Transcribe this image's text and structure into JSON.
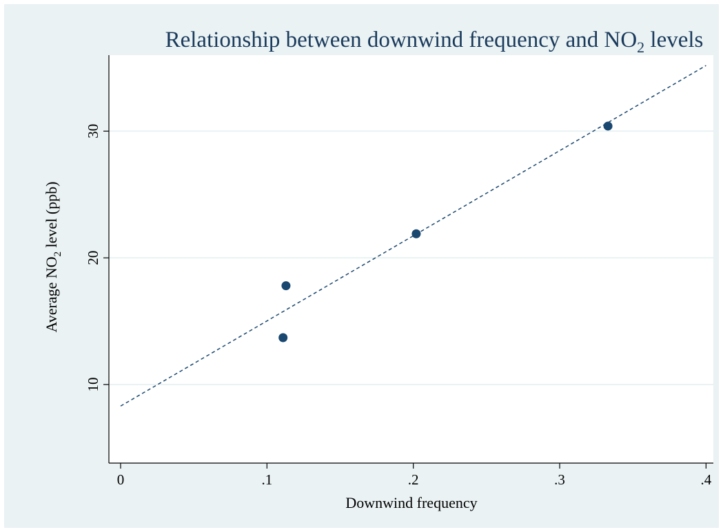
{
  "chart_data": {
    "type": "scatter",
    "title": {
      "prefix": "Relationship between downwind frequency and NO",
      "subscript": "2",
      "suffix": " levels"
    },
    "xlabel": "Downwind frequency",
    "ylabel": {
      "prefix": "Average NO",
      "subscript": "2",
      "suffix": " level (ppb)"
    },
    "xlim": [
      -0.008,
      0.405
    ],
    "ylim": [
      3.8,
      36
    ],
    "x_ticks": [
      {
        "value": 0,
        "label": "0"
      },
      {
        "value": 0.1,
        "label": ".1"
      },
      {
        "value": 0.2,
        "label": ".2"
      },
      {
        "value": 0.3,
        "label": ".3"
      },
      {
        "value": 0.4,
        "label": ".4"
      }
    ],
    "y_ticks": [
      {
        "value": 10,
        "label": "10"
      },
      {
        "value": 20,
        "label": "20"
      },
      {
        "value": 30,
        "label": "30"
      }
    ],
    "grid": "horizontal",
    "series": [
      {
        "points": [
          {
            "x": 0.111,
            "y": 13.7
          },
          {
            "x": 0.113,
            "y": 17.8
          },
          {
            "x": 0.202,
            "y": 21.9
          },
          {
            "x": 0.333,
            "y": 30.4
          }
        ]
      }
    ],
    "fit_line": {
      "style": "dashed",
      "intercept": 8.3,
      "slope": 67.2,
      "x_range": [
        0,
        0.4
      ]
    },
    "colors": {
      "background": "#eaf2f3",
      "plot_area": "#ffffff",
      "marker": "#1a476f",
      "fit_line": "#1a476f",
      "grid": "#eaf2f3",
      "title": "#1a3a5c"
    }
  }
}
